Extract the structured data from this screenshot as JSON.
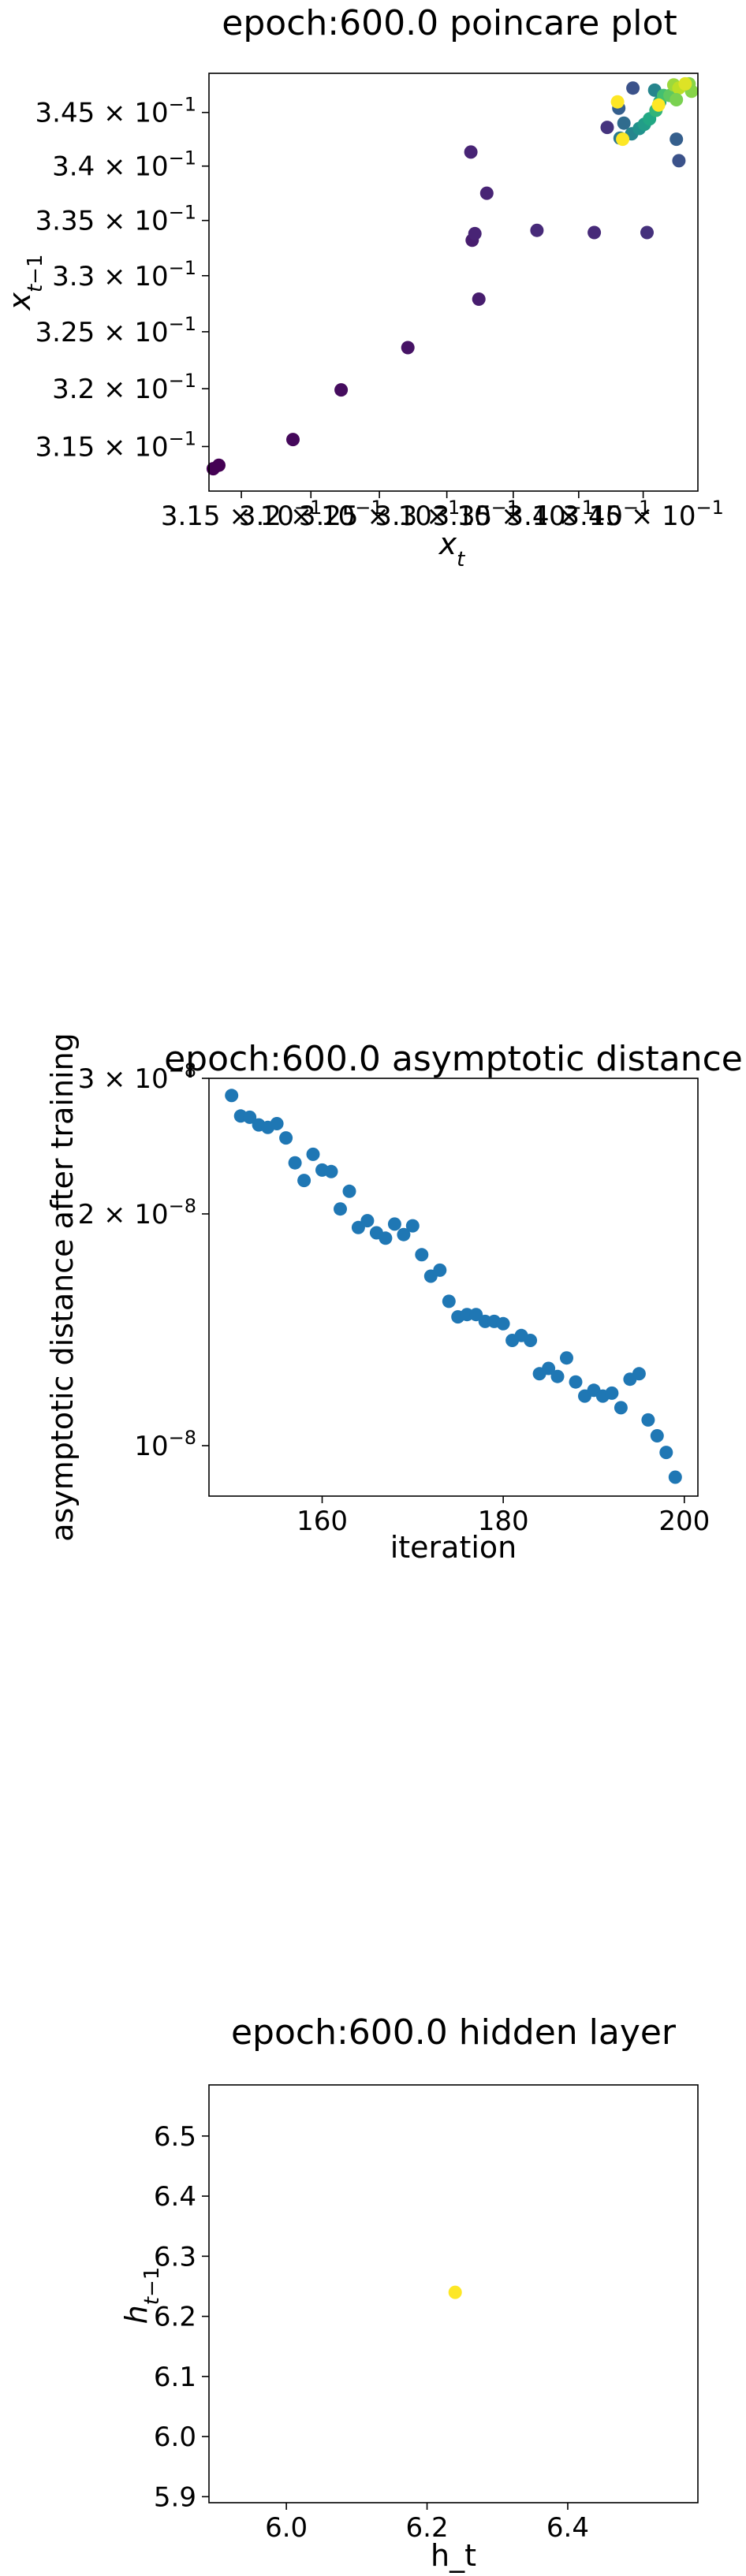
{
  "chart_data": [
    {
      "type": "scatter",
      "title": "epoch:600.0 poincare plot",
      "xlabel": "x_t",
      "ylabel": "x_{t-1}",
      "x_scale": "log",
      "y_scale": "log",
      "xlim": [
        0.3127,
        0.3493
      ],
      "ylim": [
        0.3112,
        0.3487
      ],
      "xticks": [
        {
          "value": 0.315,
          "mantissa": "3.15",
          "exp": "-1"
        },
        {
          "value": 0.32,
          "mantissa": "3.2",
          "exp": "-1"
        },
        {
          "value": 0.325,
          "mantissa": "3.25",
          "exp": "-1"
        },
        {
          "value": 0.33,
          "mantissa": "3.3",
          "exp": "-1"
        },
        {
          "value": 0.335,
          "mantissa": "3.35",
          "exp": "-1"
        },
        {
          "value": 0.34,
          "mantissa": "3.4",
          "exp": "-1"
        },
        {
          "value": 0.345,
          "mantissa": "3.45",
          "exp": "-1"
        }
      ],
      "yticks": [
        {
          "value": 0.315,
          "mantissa": "3.15",
          "exp": "-1"
        },
        {
          "value": 0.32,
          "mantissa": "3.2",
          "exp": "-1"
        },
        {
          "value": 0.325,
          "mantissa": "3.25",
          "exp": "-1"
        },
        {
          "value": 0.33,
          "mantissa": "3.3",
          "exp": "-1"
        },
        {
          "value": 0.335,
          "mantissa": "3.35",
          "exp": "-1"
        },
        {
          "value": 0.34,
          "mantissa": "3.4",
          "exp": "-1"
        },
        {
          "value": 0.345,
          "mantissa": "3.45",
          "exp": "-1"
        }
      ],
      "colormap": "viridis",
      "colormap_stops": [
        "#440154",
        "#482475",
        "#414487",
        "#355f8d",
        "#2a788e",
        "#21918c",
        "#22a884",
        "#44bf70",
        "#7ad151",
        "#bddf26",
        "#fde725"
      ],
      "grid": false,
      "points": [
        {
          "x": 0.313,
          "y": 0.3131,
          "c": 0.0
        },
        {
          "x": 0.3134,
          "y": 0.3134,
          "c": 0.0
        },
        {
          "x": 0.3187,
          "y": 0.3156,
          "c": 0.02
        },
        {
          "x": 0.3222,
          "y": 0.3199,
          "c": 0.03
        },
        {
          "x": 0.3271,
          "y": 0.3236,
          "c": 0.05
        },
        {
          "x": 0.3319,
          "y": 0.3332,
          "c": 0.08
        },
        {
          "x": 0.3324,
          "y": 0.3279,
          "c": 0.08
        },
        {
          "x": 0.3321,
          "y": 0.3338,
          "c": 0.1
        },
        {
          "x": 0.333,
          "y": 0.3375,
          "c": 0.1
        },
        {
          "x": 0.3318,
          "y": 0.3413,
          "c": 0.1
        },
        {
          "x": 0.3368,
          "y": 0.3341,
          "c": 0.12
        },
        {
          "x": 0.3412,
          "y": 0.3339,
          "c": 0.12
        },
        {
          "x": 0.3453,
          "y": 0.3339,
          "c": 0.14
        },
        {
          "x": 0.3422,
          "y": 0.3436,
          "c": 0.15
        },
        {
          "x": 0.3442,
          "y": 0.3473,
          "c": 0.25
        },
        {
          "x": 0.3431,
          "y": 0.3454,
          "c": 0.3
        },
        {
          "x": 0.3478,
          "y": 0.3405,
          "c": 0.25
        },
        {
          "x": 0.3476,
          "y": 0.3425,
          "c": 0.3
        },
        {
          "x": 0.3435,
          "y": 0.344,
          "c": 0.35
        },
        {
          "x": 0.3432,
          "y": 0.3426,
          "c": 0.4
        },
        {
          "x": 0.3441,
          "y": 0.343,
          "c": 0.45
        },
        {
          "x": 0.3447,
          "y": 0.3435,
          "c": 0.5
        },
        {
          "x": 0.3451,
          "y": 0.3439,
          "c": 0.55
        },
        {
          "x": 0.3455,
          "y": 0.3444,
          "c": 0.6
        },
        {
          "x": 0.346,
          "y": 0.3452,
          "c": 0.65
        },
        {
          "x": 0.3463,
          "y": 0.346,
          "c": 0.6
        },
        {
          "x": 0.3459,
          "y": 0.3471,
          "c": 0.45
        },
        {
          "x": 0.3466,
          "y": 0.3466,
          "c": 0.7
        },
        {
          "x": 0.3471,
          "y": 0.3466,
          "c": 0.75
        },
        {
          "x": 0.3474,
          "y": 0.3476,
          "c": 0.85
        },
        {
          "x": 0.3478,
          "y": 0.3473,
          "c": 0.9
        },
        {
          "x": 0.3476,
          "y": 0.3462,
          "c": 0.8
        },
        {
          "x": 0.3486,
          "y": 0.3477,
          "c": 0.82
        },
        {
          "x": 0.3488,
          "y": 0.347,
          "c": 0.82
        },
        {
          "x": 0.3483,
          "y": 0.3477,
          "c": 0.95
        },
        {
          "x": 0.3462,
          "y": 0.3457,
          "c": 1.0
        },
        {
          "x": 0.343,
          "y": 0.346,
          "c": 1.0
        },
        {
          "x": 0.3434,
          "y": 0.3425,
          "c": 1.0
        }
      ]
    },
    {
      "type": "scatter",
      "title": "epoch:600.0 asymptotic distance",
      "xlabel": "iteration",
      "ylabel": "asymptotic distance after training",
      "x_scale": "linear",
      "y_scale": "log",
      "xlim": [
        147.5,
        201.5
      ],
      "ylim": [
        8.6e-09,
        3e-08
      ],
      "xticks": [
        {
          "value": 160,
          "label": "160"
        },
        {
          "value": 180,
          "label": "180"
        },
        {
          "value": 200,
          "label": "200"
        }
      ],
      "yticks": [
        {
          "value": 1e-08,
          "mantissa": "10",
          "exp": "−8"
        },
        {
          "value": 2e-08,
          "mantissa": "2 × 10",
          "exp": "−8"
        },
        {
          "value": 3e-08,
          "mantissa": "3 × 10",
          "exp": "−8"
        }
      ],
      "point_color": "#1f77b4",
      "grid": false,
      "x": [
        150,
        151,
        152,
        153,
        154,
        155,
        156,
        157,
        158,
        159,
        160,
        161,
        162,
        163,
        164,
        165,
        166,
        167,
        168,
        169,
        170,
        171,
        172,
        173,
        174,
        175,
        176,
        177,
        178,
        179,
        180,
        181,
        182,
        183,
        184,
        185,
        186,
        187,
        188,
        189,
        190,
        191,
        192,
        193,
        194,
        195,
        196,
        197,
        198,
        199
      ],
      "y": [
        2.85e-08,
        2.68e-08,
        2.67e-08,
        2.61e-08,
        2.59e-08,
        2.62e-08,
        2.51e-08,
        2.33e-08,
        2.21e-08,
        2.39e-08,
        2.28e-08,
        2.27e-08,
        2.03e-08,
        2.14e-08,
        1.92e-08,
        1.96e-08,
        1.89e-08,
        1.86e-08,
        1.94e-08,
        1.88e-08,
        1.93e-08,
        1.77e-08,
        1.66e-08,
        1.69e-08,
        1.54e-08,
        1.47e-08,
        1.48e-08,
        1.48e-08,
        1.45e-08,
        1.45e-08,
        1.44e-08,
        1.37e-08,
        1.39e-08,
        1.37e-08,
        1.24e-08,
        1.26e-08,
        1.23e-08,
        1.3e-08,
        1.21e-08,
        1.16e-08,
        1.18e-08,
        1.16e-08,
        1.17e-08,
        1.12e-08,
        1.22e-08,
        1.24e-08,
        1.08e-08,
        1.03e-08,
        9.8e-09,
        9.1e-09
      ]
    },
    {
      "type": "scatter",
      "title": "epoch:600.0 hidden layer",
      "xlabel": "h_t",
      "ylabel": "h_{t-1}",
      "x_scale": "linear",
      "y_scale": "linear",
      "xlim": [
        5.89,
        6.585
      ],
      "ylim": [
        5.89,
        6.585
      ],
      "xticks": [
        {
          "value": 6.0,
          "label": "6.0"
        },
        {
          "value": 6.2,
          "label": "6.2"
        },
        {
          "value": 6.4,
          "label": "6.4"
        }
      ],
      "yticks": [
        {
          "value": 5.9,
          "label": "5.9"
        },
        {
          "value": 6.0,
          "label": "6.0"
        },
        {
          "value": 6.1,
          "label": "6.1"
        },
        {
          "value": 6.2,
          "label": "6.2"
        },
        {
          "value": 6.3,
          "label": "6.3"
        },
        {
          "value": 6.4,
          "label": "6.4"
        },
        {
          "value": 6.5,
          "label": "6.5"
        }
      ],
      "point_color": "#fde725",
      "grid": false,
      "points": [
        {
          "x": 6.24,
          "y": 6.24
        }
      ]
    }
  ]
}
